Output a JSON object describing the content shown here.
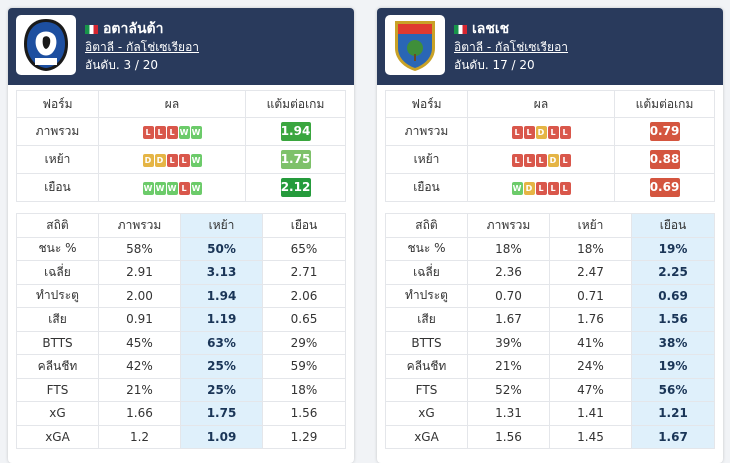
{
  "colors": {
    "header": "#293a5c",
    "win": "#6ccb6a",
    "draw": "#e5b545",
    "loss": "#d9574b",
    "highlight": "#dff0fb"
  },
  "headers": {
    "form": "ฟอร์ม",
    "result": "ผล",
    "ppg": "แต้มต่อเกม",
    "stats": "สถิติ",
    "overall": "ภาพรวม",
    "home": "เหย้า",
    "away": "เยือน"
  },
  "left": {
    "name": "อตาลันต้า",
    "league": "อิตาลี - กัลโช่เซเรียอา",
    "rank": "อันดับ. 3 / 20",
    "logo_text": "ATALANTA 1907",
    "form": [
      {
        "label": "ภาพรวม",
        "results": [
          "L",
          "L",
          "L",
          "W",
          "W"
        ],
        "ppg": "1.94",
        "ppg_color": "#3aa63f"
      },
      {
        "label": "เหย้า",
        "results": [
          "D",
          "D",
          "L",
          "L",
          "W"
        ],
        "ppg": "1.75",
        "ppg_color": "#7ec16a"
      },
      {
        "label": "เยือน",
        "results": [
          "W",
          "W",
          "W",
          "L",
          "W"
        ],
        "ppg": "2.12",
        "ppg_color": "#259b3c"
      }
    ],
    "highlight_col": 2,
    "stats": [
      {
        "label": "ชนะ %",
        "overall": "58%",
        "home": "50%",
        "away": "65%"
      },
      {
        "label": "เฉลี่ย",
        "overall": "2.91",
        "home": "3.13",
        "away": "2.71"
      },
      {
        "label": "ทำประตู",
        "overall": "2.00",
        "home": "1.94",
        "away": "2.06"
      },
      {
        "label": "เสีย",
        "overall": "0.91",
        "home": "1.19",
        "away": "0.65"
      },
      {
        "label": "BTTS",
        "overall": "45%",
        "home": "63%",
        "away": "29%"
      },
      {
        "label": "คลีนชีท",
        "overall": "42%",
        "home": "25%",
        "away": "59%"
      },
      {
        "label": "FTS",
        "overall": "21%",
        "home": "25%",
        "away": "18%"
      },
      {
        "label": "xG",
        "overall": "1.66",
        "home": "1.75",
        "away": "1.56"
      },
      {
        "label": "xGA",
        "overall": "1.2",
        "home": "1.09",
        "away": "1.29"
      }
    ]
  },
  "right": {
    "name": "เลชเช",
    "league": "อิตาลี - กัลโช่เซเรียอา",
    "rank": "อันดับ. 17 / 20",
    "logo_text": "U.S. LECCE",
    "form": [
      {
        "label": "ภาพรวม",
        "results": [
          "L",
          "L",
          "D",
          "L",
          "L"
        ],
        "ppg": "0.79",
        "ppg_color": "#d4553f"
      },
      {
        "label": "เหย้า",
        "results": [
          "L",
          "L",
          "L",
          "D",
          "L"
        ],
        "ppg": "0.88",
        "ppg_color": "#d4553f"
      },
      {
        "label": "เยือน",
        "results": [
          "W",
          "D",
          "L",
          "L",
          "L"
        ],
        "ppg": "0.69",
        "ppg_color": "#d4553f"
      }
    ],
    "highlight_col": 3,
    "stats": [
      {
        "label": "ชนะ %",
        "overall": "18%",
        "home": "18%",
        "away": "19%"
      },
      {
        "label": "เฉลี่ย",
        "overall": "2.36",
        "home": "2.47",
        "away": "2.25"
      },
      {
        "label": "ทำประตู",
        "overall": "0.70",
        "home": "0.71",
        "away": "0.69"
      },
      {
        "label": "เสีย",
        "overall": "1.67",
        "home": "1.76",
        "away": "1.56"
      },
      {
        "label": "BTTS",
        "overall": "39%",
        "home": "41%",
        "away": "38%"
      },
      {
        "label": "คลีนชีท",
        "overall": "21%",
        "home": "24%",
        "away": "19%"
      },
      {
        "label": "FTS",
        "overall": "52%",
        "home": "47%",
        "away": "56%"
      },
      {
        "label": "xG",
        "overall": "1.31",
        "home": "1.41",
        "away": "1.21"
      },
      {
        "label": "xGA",
        "overall": "1.56",
        "home": "1.45",
        "away": "1.67"
      }
    ]
  }
}
